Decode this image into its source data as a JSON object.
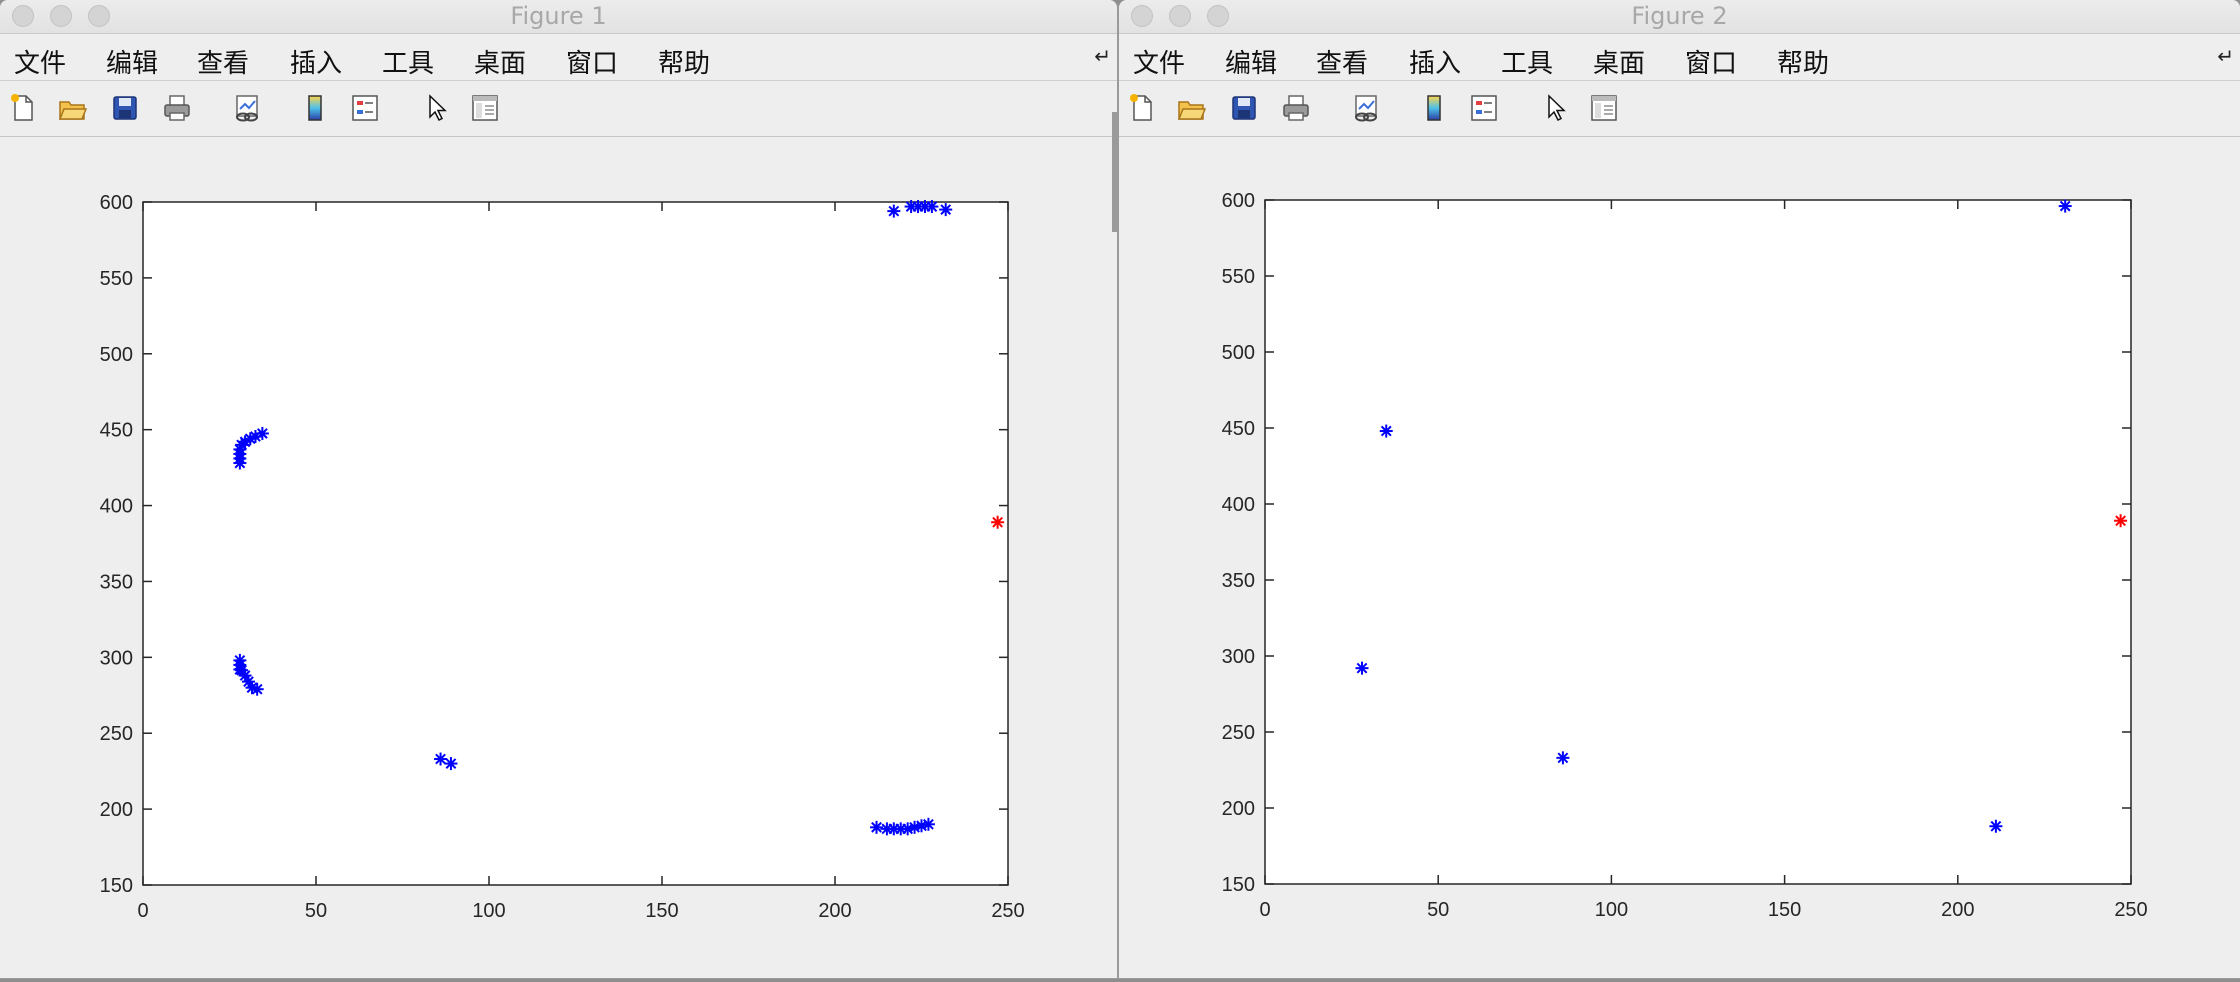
{
  "menu_items": [
    "文件",
    "编辑",
    "查看",
    "插入",
    "工具",
    "桌面",
    "窗口",
    "帮助"
  ],
  "menu_overflow_icon": "chevron-corner-icon",
  "toolbar_icons": [
    "new-figure-icon",
    "open-file-icon",
    "save-icon",
    "print-icon",
    "link-plot-icon",
    "colorbar-icon",
    "legend-icon",
    "pointer-icon",
    "property-inspector-icon"
  ],
  "colors": {
    "series_main": "#0000ff",
    "series_highlight": "#ff0000"
  },
  "windows": [
    {
      "title": "Figure 1"
    },
    {
      "title": "Figure 2"
    }
  ],
  "chart_data": [
    {
      "type": "scatter",
      "title": "",
      "xlabel": "",
      "ylabel": "",
      "xlim": [
        0,
        250
      ],
      "ylim": [
        150,
        600
      ],
      "xticks": [
        0,
        50,
        100,
        150,
        200,
        250
      ],
      "yticks": [
        150,
        200,
        250,
        300,
        350,
        400,
        450,
        500,
        550,
        600
      ],
      "grid": false,
      "marker": "asterisk",
      "series": [
        {
          "color": "#0000ff",
          "points": [
            [
              28,
              428
            ],
            [
              28,
              431
            ],
            [
              28,
              434
            ],
            [
              28,
              437
            ],
            [
              28.5,
              440
            ],
            [
              29.5,
              442
            ],
            [
              31,
              444
            ],
            [
              32.5,
              445.5
            ],
            [
              34.5,
              447.5
            ],
            [
              28,
              292
            ],
            [
              28,
              295
            ],
            [
              28,
              298
            ],
            [
              28.5,
              291.5
            ],
            [
              29.5,
              288
            ],
            [
              30.5,
              284
            ],
            [
              31.5,
              280
            ],
            [
              33,
              279
            ],
            [
              86,
              233
            ],
            [
              89,
              230
            ],
            [
              212,
              188
            ],
            [
              215,
              187
            ],
            [
              217,
              187
            ],
            [
              219,
              187
            ],
            [
              221,
              187
            ],
            [
              223,
              188
            ],
            [
              225,
              189
            ],
            [
              227,
              190
            ],
            [
              217,
              594
            ],
            [
              222,
              597
            ],
            [
              224,
              597
            ],
            [
              226,
              597
            ],
            [
              228,
              597
            ],
            [
              232,
              595
            ]
          ]
        },
        {
          "color": "#ff0000",
          "points": [
            [
              247,
              389
            ]
          ]
        }
      ]
    },
    {
      "type": "scatter",
      "title": "",
      "xlabel": "",
      "ylabel": "",
      "xlim": [
        0,
        250
      ],
      "ylim": [
        150,
        600
      ],
      "xticks": [
        0,
        50,
        100,
        150,
        200,
        250
      ],
      "yticks": [
        150,
        200,
        250,
        300,
        350,
        400,
        450,
        500,
        550,
        600
      ],
      "grid": false,
      "marker": "asterisk",
      "series": [
        {
          "color": "#0000ff",
          "points": [
            [
              35,
              448
            ],
            [
              28,
              292
            ],
            [
              86,
              233
            ],
            [
              211,
              188
            ],
            [
              231,
              596
            ]
          ]
        },
        {
          "color": "#ff0000",
          "points": [
            [
              247,
              389
            ]
          ]
        }
      ]
    }
  ]
}
